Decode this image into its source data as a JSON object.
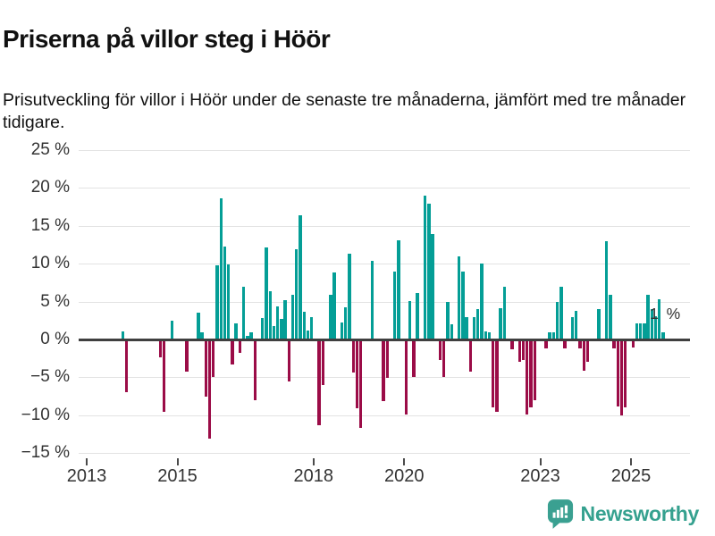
{
  "header": {
    "title": "Priserna på villor steg i Höör",
    "subtitle": "Prisutveckling för villor i Höör under de senaste tre månaderna, jämfört med tre månader tidigare."
  },
  "chart_data": {
    "type": "bar",
    "title": "Priserna på villor steg i Höör",
    "ylabel": "",
    "xlabel": "",
    "unit": "%",
    "grid": true,
    "ylim": [
      -15,
      25
    ],
    "colors": {
      "positive": "#049e96",
      "negative": "#9b0c47",
      "zero_axis": "#3f3f3f",
      "gridline": "#e3e3e3"
    },
    "y_axis": {
      "tick_values": [
        25,
        20,
        15,
        10,
        5,
        0,
        -5,
        -10,
        -15
      ],
      "tick_labels": [
        "25 %",
        "20 %",
        "15 %",
        "10 %",
        "5 %",
        "0 %",
        "−5 %",
        "−10 %",
        "−15 %"
      ]
    },
    "x_axis": {
      "tick_years": [
        "2013",
        "2015",
        "2018",
        "2020",
        "2023",
        "2025"
      ]
    },
    "annotation": {
      "text": "1 %",
      "date": "2025-09",
      "value": 1.0
    },
    "points": [
      [
        "2013-10",
        1.1
      ],
      [
        "2013-11",
        -7.0
      ],
      [
        "2014-08",
        -2.4
      ],
      [
        "2014-09",
        -9.6
      ],
      [
        "2014-11",
        2.5
      ],
      [
        "2015-03",
        -4.3
      ],
      [
        "2015-06",
        3.5
      ],
      [
        "2015-07",
        1.0
      ],
      [
        "2015-08",
        -7.6
      ],
      [
        "2015-09",
        -13.1
      ],
      [
        "2015-10",
        -5.0
      ],
      [
        "2015-11",
        9.8
      ],
      [
        "2015-12",
        18.6
      ],
      [
        "2016-01",
        12.3
      ],
      [
        "2016-02",
        9.9
      ],
      [
        "2016-03",
        -3.3
      ],
      [
        "2016-04",
        2.1
      ],
      [
        "2016-05",
        -1.8
      ],
      [
        "2016-06",
        6.9
      ],
      [
        "2016-07",
        0.5
      ],
      [
        "2016-08",
        1.0
      ],
      [
        "2016-09",
        -8.0
      ],
      [
        "2016-11",
        2.8
      ],
      [
        "2016-12",
        12.1
      ],
      [
        "2017-01",
        6.4
      ],
      [
        "2017-02",
        1.8
      ],
      [
        "2017-03",
        4.4
      ],
      [
        "2017-04",
        2.7
      ],
      [
        "2017-05",
        5.2
      ],
      [
        "2017-06",
        -5.5
      ],
      [
        "2017-07",
        5.9
      ],
      [
        "2017-08",
        11.9
      ],
      [
        "2017-09",
        16.4
      ],
      [
        "2017-10",
        3.7
      ],
      [
        "2017-11",
        1.2
      ],
      [
        "2017-12",
        3.0
      ],
      [
        "2018-02",
        -11.3
      ],
      [
        "2018-03",
        -6.0
      ],
      [
        "2018-05",
        5.9
      ],
      [
        "2018-06",
        8.8
      ],
      [
        "2018-08",
        2.2
      ],
      [
        "2018-09",
        4.2
      ],
      [
        "2018-10",
        11.3
      ],
      [
        "2018-11",
        -4.4
      ],
      [
        "2018-12",
        -9.1
      ],
      [
        "2019-01",
        -11.7
      ],
      [
        "2019-04",
        10.4
      ],
      [
        "2019-07",
        -8.1
      ],
      [
        "2019-08",
        -5.1
      ],
      [
        "2019-10",
        9.0
      ],
      [
        "2019-11",
        13.1
      ],
      [
        "2020-01",
        -9.9
      ],
      [
        "2020-02",
        5.1
      ],
      [
        "2020-03",
        -4.9
      ],
      [
        "2020-04",
        6.1
      ],
      [
        "2020-06",
        19.0
      ],
      [
        "2020-07",
        17.9
      ],
      [
        "2020-08",
        13.9
      ],
      [
        "2020-10",
        -2.7
      ],
      [
        "2020-11",
        -5.0
      ],
      [
        "2020-12",
        5.0
      ],
      [
        "2021-01",
        2.0
      ],
      [
        "2021-03",
        11.0
      ],
      [
        "2021-04",
        9.0
      ],
      [
        "2021-05",
        2.9
      ],
      [
        "2021-06",
        -4.2
      ],
      [
        "2021-07",
        2.9
      ],
      [
        "2021-08",
        4.0
      ],
      [
        "2021-09",
        10.0
      ],
      [
        "2021-10",
        1.1
      ],
      [
        "2021-11",
        0.9
      ],
      [
        "2021-12",
        -8.9
      ],
      [
        "2022-01",
        -9.5
      ],
      [
        "2022-02",
        4.1
      ],
      [
        "2022-03",
        6.9
      ],
      [
        "2022-05",
        -1.3
      ],
      [
        "2022-07",
        -3.0
      ],
      [
        "2022-08",
        -2.7
      ],
      [
        "2022-09",
        -9.9
      ],
      [
        "2022-10",
        -9.0
      ],
      [
        "2022-11",
        -8.0
      ],
      [
        "2023-02",
        -1.2
      ],
      [
        "2023-03",
        0.9
      ],
      [
        "2023-04",
        0.9
      ],
      [
        "2023-05",
        4.9
      ],
      [
        "2023-06",
        6.9
      ],
      [
        "2023-07",
        -1.2
      ],
      [
        "2023-09",
        3.0
      ],
      [
        "2023-10",
        3.8
      ],
      [
        "2023-11",
        -1.2
      ],
      [
        "2023-12",
        -4.1
      ],
      [
        "2024-01",
        -2.9
      ],
      [
        "2024-04",
        4.0
      ],
      [
        "2024-06",
        13.0
      ],
      [
        "2024-07",
        5.9
      ],
      [
        "2024-08",
        -1.2
      ],
      [
        "2024-09",
        -8.8
      ],
      [
        "2024-10",
        -10.0
      ],
      [
        "2024-11",
        -8.9
      ],
      [
        "2025-01",
        -1.1
      ],
      [
        "2025-02",
        2.1
      ],
      [
        "2025-03",
        2.1
      ],
      [
        "2025-04",
        2.1
      ],
      [
        "2025-05",
        5.9
      ],
      [
        "2025-06",
        4.0
      ],
      [
        "2025-07",
        3.1
      ],
      [
        "2025-08",
        5.3
      ],
      [
        "2025-09",
        1.0
      ]
    ]
  },
  "footer": {
    "brand": "Newsworthy",
    "logo_icon": "bar-chart-speech-bubble-icon"
  }
}
